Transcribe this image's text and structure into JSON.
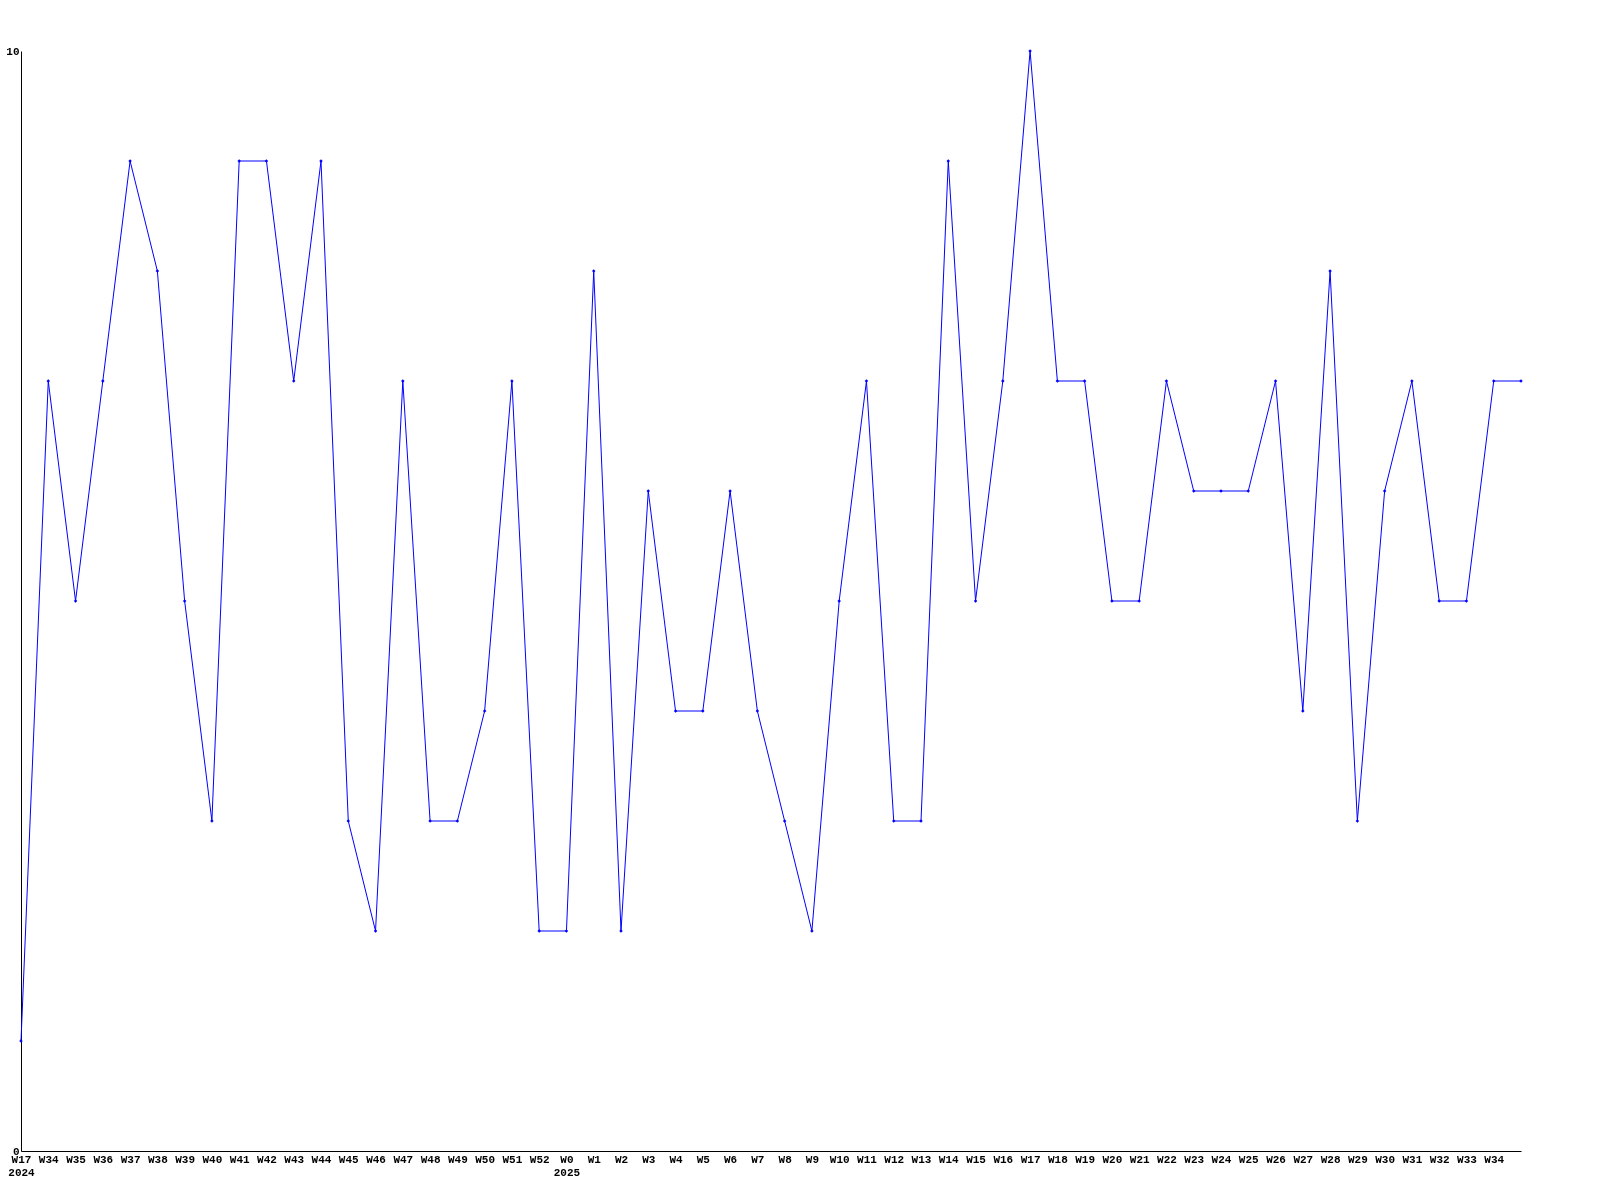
{
  "chart_data": {
    "type": "line",
    "categories": [
      "W17\n2024",
      "W34",
      "W35",
      "W36",
      "W37",
      "W38",
      "W39",
      "W40",
      "W41",
      "W42",
      "W43",
      "W44",
      "W45",
      "W46",
      "W47",
      "W48",
      "W49",
      "W50",
      "W51",
      "W52",
      "W0\n2025",
      "W1",
      "W2",
      "W3",
      "W4",
      "W5",
      "W6",
      "W7",
      "W8",
      "W9",
      "W10",
      "W11",
      "W12",
      "W13",
      "W14",
      "W15",
      "W16",
      "W17",
      "W18",
      "W19",
      "W20",
      "W21",
      "W22",
      "W23",
      "W24",
      "W25",
      "W26",
      "W27",
      "W28",
      "W29",
      "W30",
      "W31",
      "W32",
      "W33",
      "W34",
      null
    ],
    "series": [
      {
        "color": "#0000ff",
        "values": [
          1,
          7,
          5,
          7,
          9,
          8,
          5,
          3,
          9,
          9,
          7,
          9,
          3,
          2,
          7,
          3,
          3,
          4,
          7,
          2,
          2,
          8,
          2,
          6,
          4,
          4,
          6,
          4,
          3,
          2,
          5,
          7,
          3,
          3,
          9,
          5,
          7,
          10,
          7,
          7,
          5,
          5,
          7,
          6,
          6,
          6,
          7,
          4,
          8,
          3,
          6,
          7,
          5,
          5,
          7,
          7
        ]
      }
    ],
    "ylim": [
      0,
      10
    ],
    "yticks": [
      0,
      10
    ],
    "grid": false,
    "marker": "diamond",
    "line_style": "solid"
  }
}
